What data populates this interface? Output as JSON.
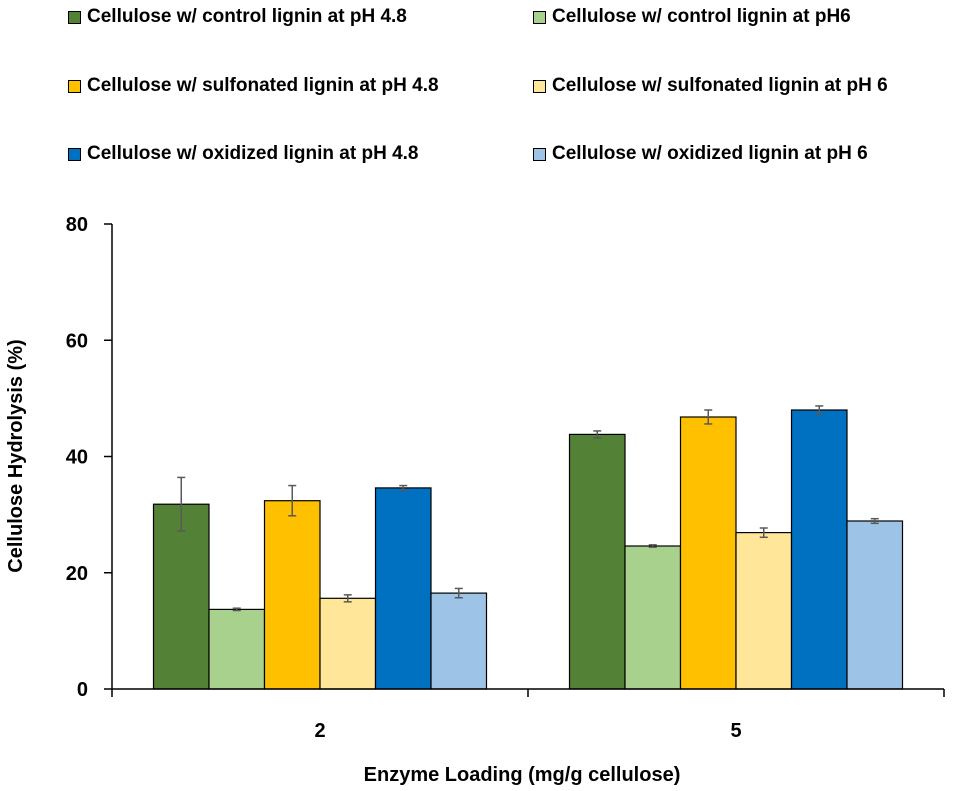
{
  "chart_data": {
    "type": "bar",
    "title": "",
    "xlabel": "Enzyme Loading (mg/g cellulose)",
    "ylabel": "Cellulose Hydrolysis (%)",
    "ylim": [
      0,
      80
    ],
    "yticks": [
      "0",
      "20",
      "40",
      "60",
      "80"
    ],
    "ytick_values": [
      0,
      20,
      40,
      60,
      80
    ],
    "categories": [
      "2",
      "5"
    ],
    "grid": false,
    "legend_position": "top",
    "series": [
      {
        "name": "Cellulose w/ control lignin at pH 4.8",
        "color": "#538135",
        "values": [
          31.8,
          43.8
        ],
        "errors": [
          4.6,
          0.6
        ]
      },
      {
        "name": "Cellulose w/ control lignin at pH6",
        "color": "#A9D18E",
        "values": [
          13.7,
          24.6
        ],
        "errors": [
          0.2,
          0.2
        ]
      },
      {
        "name": "Cellulose w/ sulfonated lignin at pH 4.8",
        "color": "#FFC000",
        "values": [
          32.4,
          46.8
        ],
        "errors": [
          2.6,
          1.2
        ]
      },
      {
        "name": "Cellulose w/ sulfonated lignin at pH 6",
        "color": "#FFE699",
        "values": [
          15.6,
          26.9
        ],
        "errors": [
          0.6,
          0.8
        ]
      },
      {
        "name": "Cellulose w/ oxidized lignin at pH 4.8",
        "color": "#0070C0",
        "values": [
          34.6,
          48.0
        ],
        "errors": [
          0.4,
          0.7
        ]
      },
      {
        "name": "Cellulose w/ oxidized lignin at pH 6",
        "color": "#9DC3E6",
        "values": [
          16.5,
          28.9
        ],
        "errors": [
          0.8,
          0.4
        ]
      }
    ]
  }
}
